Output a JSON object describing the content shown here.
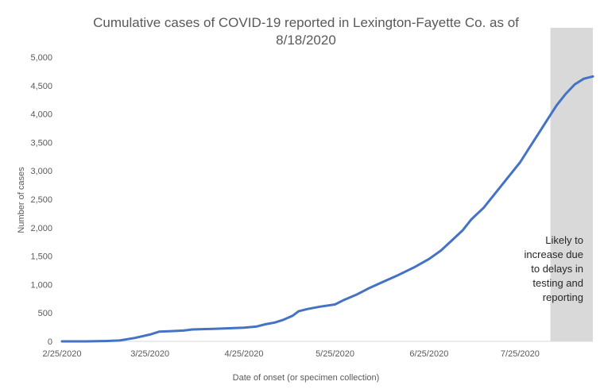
{
  "chart_data": {
    "type": "line",
    "title_lines": [
      "Cumulative cases of COVID-19 reported in Lexington-Fayette Co.  as of",
      "8/18/2020"
    ],
    "xlabel": "Date of onset (or specimen collection)",
    "ylabel": "Number  of cases",
    "ylim": [
      0,
      5000
    ],
    "y_ticks": [
      0,
      500,
      1000,
      1500,
      2000,
      2500,
      3000,
      3500,
      4000,
      4500,
      5000
    ],
    "y_tick_labels": [
      "0",
      "500",
      "1,000",
      "1,500",
      "2,000",
      "2,500",
      "3,000",
      "3,500",
      "4,000",
      "4,500",
      "5,000"
    ],
    "x_tick_labels": [
      "2/25/2020",
      "3/25/2020",
      "4/25/2020",
      "5/25/2020",
      "6/25/2020",
      "7/25/2020"
    ],
    "x_tick_dates": [
      "2020-02-25",
      "2020-03-25",
      "2020-04-25",
      "2020-05-25",
      "2020-06-25",
      "2020-07-25"
    ],
    "xlim": [
      "2020-02-25",
      "2020-08-18"
    ],
    "grid": false,
    "legend": "none",
    "series": [
      {
        "color": "#4472C4",
        "points": [
          [
            "2020-02-25",
            0
          ],
          [
            "2020-03-04",
            0
          ],
          [
            "2020-03-10",
            5
          ],
          [
            "2020-03-15",
            15
          ],
          [
            "2020-03-20",
            60
          ],
          [
            "2020-03-25",
            120
          ],
          [
            "2020-03-28",
            170
          ],
          [
            "2020-04-01",
            180
          ],
          [
            "2020-04-05",
            190
          ],
          [
            "2020-04-08",
            210
          ],
          [
            "2020-04-15",
            220
          ],
          [
            "2020-04-20",
            230
          ],
          [
            "2020-04-25",
            240
          ],
          [
            "2020-04-29",
            260
          ],
          [
            "2020-05-02",
            300
          ],
          [
            "2020-05-05",
            330
          ],
          [
            "2020-05-08",
            380
          ],
          [
            "2020-05-11",
            450
          ],
          [
            "2020-05-13",
            530
          ],
          [
            "2020-05-16",
            570
          ],
          [
            "2020-05-20",
            610
          ],
          [
            "2020-05-25",
            650
          ],
          [
            "2020-05-28",
            730
          ],
          [
            "2020-06-01",
            820
          ],
          [
            "2020-06-05",
            930
          ],
          [
            "2020-06-10",
            1050
          ],
          [
            "2020-06-15",
            1170
          ],
          [
            "2020-06-20",
            1300
          ],
          [
            "2020-06-25",
            1450
          ],
          [
            "2020-06-29",
            1600
          ],
          [
            "2020-07-03",
            1800
          ],
          [
            "2020-07-06",
            1950
          ],
          [
            "2020-07-09",
            2150
          ],
          [
            "2020-07-13",
            2350
          ],
          [
            "2020-07-16",
            2550
          ],
          [
            "2020-07-19",
            2750
          ],
          [
            "2020-07-22",
            2950
          ],
          [
            "2020-07-25",
            3150
          ],
          [
            "2020-07-28",
            3400
          ],
          [
            "2020-07-31",
            3650
          ],
          [
            "2020-08-03",
            3900
          ],
          [
            "2020-08-06",
            4150
          ],
          [
            "2020-08-09",
            4350
          ],
          [
            "2020-08-12",
            4520
          ],
          [
            "2020-08-15",
            4620
          ],
          [
            "2020-08-18",
            4660
          ]
        ]
      }
    ],
    "annotation": {
      "lines": [
        "Likely to",
        "increase due",
        "to delays in",
        "testing and",
        "reporting"
      ],
      "shade_from": "2020-08-04",
      "shade_color": "#d9d9d9"
    }
  }
}
